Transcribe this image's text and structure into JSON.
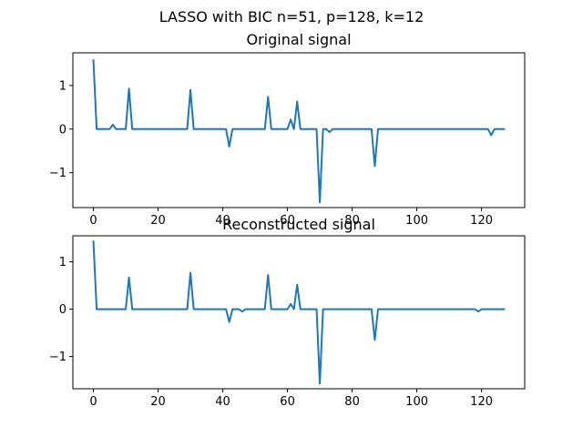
{
  "figure": {
    "suptitle": "LASSO with BIC n=51, p=128, k=12",
    "line_color": "#1f77b4"
  },
  "chart_data": [
    {
      "type": "line",
      "title": "Original signal",
      "xlabel": "",
      "ylabel": "",
      "xlim": [
        -6.35,
        133.35
      ],
      "ylim": [
        -1.8,
        1.75
      ],
      "xticks": [
        0,
        20,
        40,
        60,
        80,
        100,
        120
      ],
      "xtick_labels": [
        "0",
        "20",
        "40",
        "60",
        "80",
        "100",
        "120"
      ],
      "yticks": [
        1,
        0,
        -1
      ],
      "ytick_labels": [
        "1",
        "0",
        "−1"
      ],
      "grid": false,
      "series": [
        {
          "values": [
            1.58,
            0,
            0,
            0,
            0,
            0,
            0.1,
            0,
            0,
            0,
            0,
            0.93,
            0,
            0,
            0,
            0,
            0,
            0,
            0,
            0,
            0,
            0,
            0,
            0,
            0,
            0,
            0,
            0,
            0,
            0,
            0.9,
            0,
            0,
            0,
            0,
            0,
            0,
            0,
            0,
            0,
            0,
            0,
            -0.4,
            0,
            0,
            0,
            0,
            0,
            0,
            0,
            0,
            0,
            0,
            0,
            0.74,
            0,
            0,
            0,
            0,
            0,
            0,
            0.22,
            0,
            0.63,
            0,
            0,
            0,
            0,
            0,
            0,
            -1.68,
            0,
            0,
            -0.07,
            0,
            0,
            0,
            0,
            0,
            0,
            0,
            0,
            0,
            0,
            0,
            0,
            0,
            -0.85,
            0,
            0,
            0,
            0,
            0,
            0,
            0,
            0,
            0,
            0,
            0,
            0,
            0,
            0,
            0,
            0,
            0,
            0,
            0,
            0,
            0,
            0,
            0,
            0,
            0,
            0,
            0,
            0,
            0,
            0,
            0,
            0,
            0,
            0,
            0,
            -0.14,
            0,
            0,
            0,
            0
          ]
        }
      ]
    },
    {
      "type": "line",
      "title": "Reconstructed signal",
      "xlabel": "",
      "ylabel": "",
      "xlim": [
        -6.35,
        133.35
      ],
      "ylim": [
        -1.68,
        1.55
      ],
      "xticks": [
        0,
        20,
        40,
        60,
        80,
        100,
        120
      ],
      "xtick_labels": [
        "0",
        "20",
        "40",
        "60",
        "80",
        "100",
        "120"
      ],
      "yticks": [
        1,
        0,
        -1
      ],
      "ytick_labels": [
        "1",
        "0",
        "−1"
      ],
      "grid": false,
      "series": [
        {
          "values": [
            1.43,
            0,
            0,
            0,
            0,
            0,
            0,
            0,
            0,
            0,
            0,
            0.67,
            0,
            0,
            0,
            0,
            0,
            0,
            0,
            0,
            0,
            0,
            0,
            0,
            0,
            0,
            0,
            0,
            0,
            0,
            0.77,
            0,
            0,
            0,
            0,
            0,
            0,
            0,
            0,
            0,
            0,
            0,
            -0.27,
            0,
            0,
            0,
            -0.05,
            0,
            0,
            0,
            0,
            0,
            0,
            0,
            0.72,
            0,
            0,
            0,
            0,
            0,
            0,
            0.11,
            0,
            0.52,
            0,
            0,
            0,
            0,
            0,
            0,
            -1.57,
            0,
            0,
            0,
            0,
            0,
            0,
            0,
            0,
            0,
            0,
            0,
            0,
            0,
            0,
            0,
            0,
            -0.65,
            0,
            0,
            0,
            0,
            0,
            0,
            0,
            0,
            0,
            0,
            0,
            0,
            0,
            0,
            0,
            0,
            0,
            0,
            0,
            0,
            0,
            0,
            0,
            0,
            0,
            0,
            0,
            0,
            0,
            0,
            0,
            -0.05,
            0,
            0,
            0,
            0,
            0,
            0,
            0,
            0
          ]
        }
      ]
    }
  ]
}
